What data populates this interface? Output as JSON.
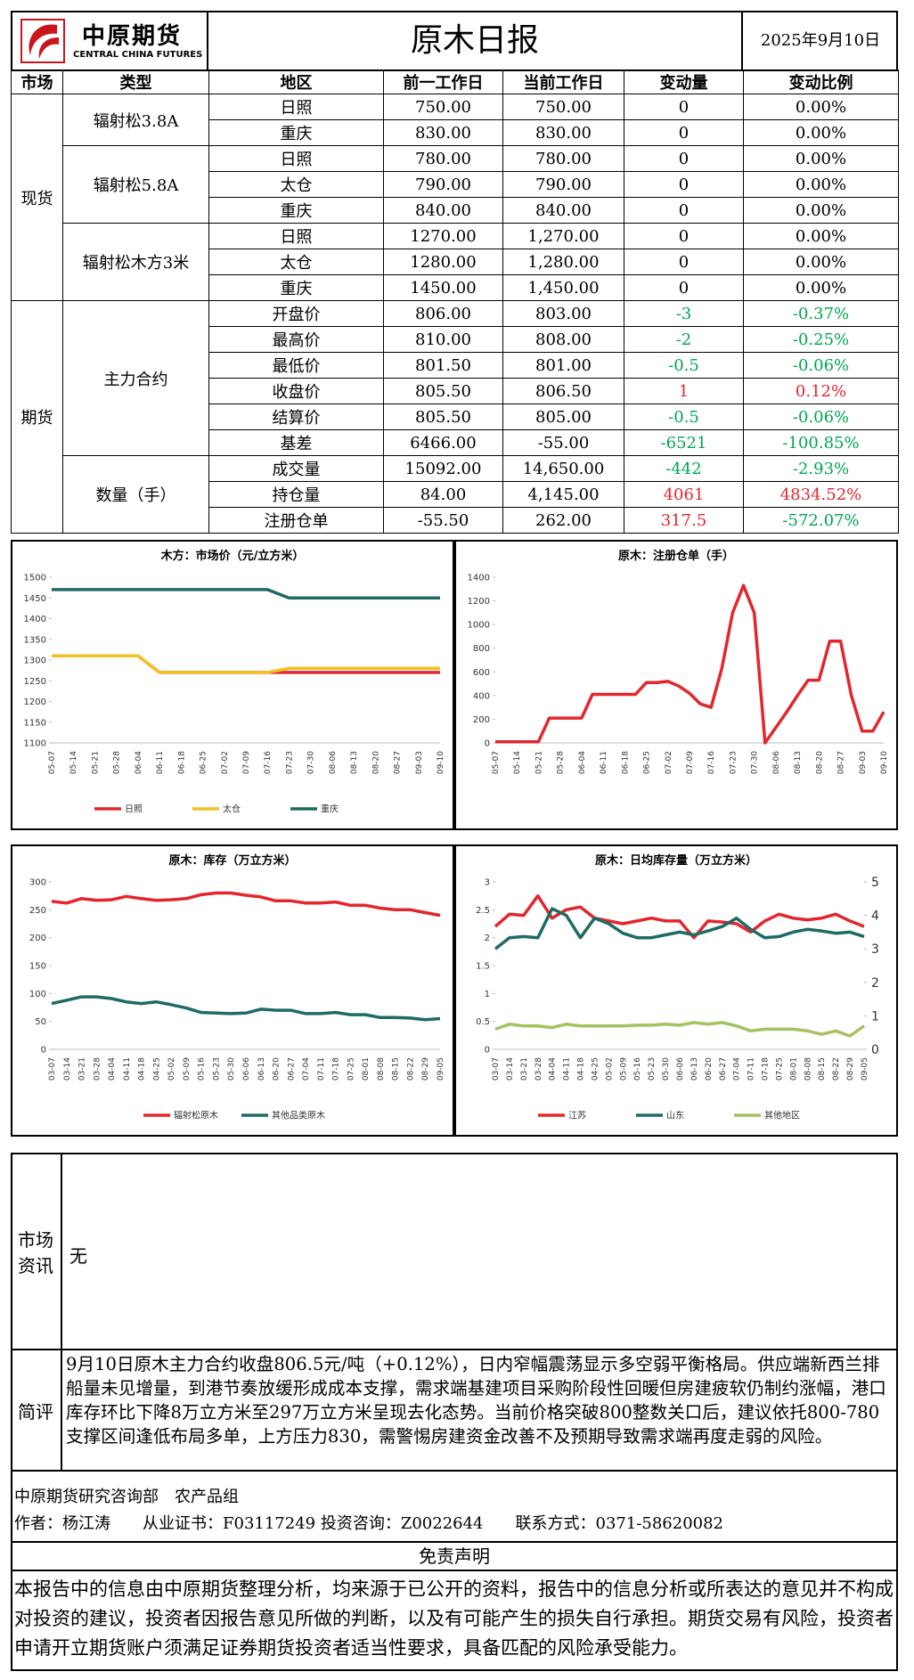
{
  "header": {
    "logo_cn": "中原期货",
    "logo_en": "CENTRAL CHINA FUTURES",
    "title": "原木日报",
    "date": "2025年9月10日"
  },
  "table": {
    "columns": [
      "市场",
      "类型",
      "地区",
      "前一工作日",
      "当前工作日",
      "变动量",
      "变动比例"
    ],
    "markets": [
      {
        "name": "现货",
        "groups": [
          {
            "name": "辐射松3.8A",
            "rows": [
              {
                "cells": [
                  "日照",
                  "750.00",
                  "750.00",
                  "0",
                  "0.00%"
                ]
              },
              {
                "cells": [
                  "重庆",
                  "830.00",
                  "830.00",
                  "0",
                  "0.00%"
                ]
              }
            ]
          },
          {
            "name": "辐射松5.8A",
            "rows": [
              {
                "cells": [
                  "日照",
                  "780.00",
                  "780.00",
                  "0",
                  "0.00%"
                ]
              },
              {
                "cells": [
                  "太仓",
                  "790.00",
                  "790.00",
                  "0",
                  "0.00%"
                ]
              },
              {
                "cells": [
                  "重庆",
                  "840.00",
                  "840.00",
                  "0",
                  "0.00%"
                ]
              }
            ]
          },
          {
            "name": "辐射松木方3米",
            "rows": [
              {
                "cells": [
                  "日照",
                  "1270.00",
                  "1,270.00",
                  "0",
                  "0.00%"
                ]
              },
              {
                "cells": [
                  "太仓",
                  "1280.00",
                  "1,280.00",
                  "0",
                  "0.00%"
                ]
              },
              {
                "cells": [
                  "重庆",
                  "1450.00",
                  "1,450.00",
                  "0",
                  "0.00%"
                ]
              }
            ]
          }
        ]
      },
      {
        "name": "期货",
        "groups": [
          {
            "name": "主力合约",
            "rows": [
              {
                "cells": [
                  "开盘价",
                  "806.00",
                  "803.00",
                  "-3",
                  "-0.37%"
                ],
                "colors": [
                  "#00a651",
                  "#00a651"
                ]
              },
              {
                "cells": [
                  "最高价",
                  "810.00",
                  "808.00",
                  "-2",
                  "-0.25%"
                ],
                "colors": [
                  "#00a651",
                  "#00a651"
                ]
              },
              {
                "cells": [
                  "最低价",
                  "801.50",
                  "801.00",
                  "-0.5",
                  "-0.06%"
                ],
                "colors": [
                  "#00a651",
                  "#00a651"
                ]
              },
              {
                "cells": [
                  "收盘价",
                  "805.50",
                  "806.50",
                  "1",
                  "0.12%"
                ],
                "colors": [
                  "#e3262d",
                  "#e3262d"
                ]
              },
              {
                "cells": [
                  "结算价",
                  "805.50",
                  "805.00",
                  "-0.5",
                  "-0.06%"
                ],
                "colors": [
                  "#00a651",
                  "#00a651"
                ]
              },
              {
                "cells": [
                  "基差",
                  "6466.00",
                  "-55.00",
                  "-6521",
                  "-100.85%"
                ],
                "colors": [
                  "#00a651",
                  "#00a651"
                ]
              }
            ]
          },
          {
            "name": "数量（手）",
            "rows": [
              {
                "cells": [
                  "成交量",
                  "15092.00",
                  "14,650.00",
                  "-442",
                  "-2.93%"
                ],
                "colors": [
                  "#00a651",
                  "#00a651"
                ]
              },
              {
                "cells": [
                  "持仓量",
                  "84.00",
                  "4,145.00",
                  "4061",
                  "4834.52%"
                ],
                "colors": [
                  "#e3262d",
                  "#e3262d"
                ]
              },
              {
                "cells": [
                  "注册仓单",
                  "-55.50",
                  "262.00",
                  "317.5",
                  "-572.07%"
                ],
                "colors": [
                  "#e3262d",
                  "#00a651"
                ]
              }
            ]
          }
        ]
      }
    ]
  },
  "chart_data": [
    {
      "type": "line",
      "title": "木方：市场价（元/立方米）",
      "categories": [
        "05-07",
        "05-14",
        "05-21",
        "05-28",
        "06-04",
        "06-11",
        "06-18",
        "06-25",
        "07-02",
        "07-09",
        "07-16",
        "07-23",
        "07-30",
        "08-06",
        "08-13",
        "08-20",
        "08-27",
        "09-03",
        "09-10"
      ],
      "series": [
        {
          "name": "日照",
          "color": "#e3262d",
          "values": [
            1310,
            1310,
            1310,
            1310,
            1310,
            1270,
            1270,
            1270,
            1270,
            1270,
            1270,
            1270,
            1270,
            1270,
            1270,
            1270,
            1270,
            1270,
            1270
          ]
        },
        {
          "name": "太仓",
          "color": "#f5c022",
          "values": [
            1310,
            1310,
            1310,
            1310,
            1310,
            1270,
            1270,
            1270,
            1270,
            1270,
            1270,
            1280,
            1280,
            1280,
            1280,
            1280,
            1280,
            1280,
            1280
          ]
        },
        {
          "name": "重庆",
          "color": "#1e6b63",
          "values": [
            1470,
            1470,
            1470,
            1470,
            1470,
            1470,
            1470,
            1470,
            1470,
            1470,
            1470,
            1450,
            1450,
            1450,
            1450,
            1450,
            1450,
            1450,
            1450
          ]
        }
      ],
      "ylim": [
        1100,
        1500
      ],
      "yticks": [
        1100,
        1150,
        1200,
        1250,
        1300,
        1350,
        1400,
        1450,
        1500
      ]
    },
    {
      "type": "line",
      "title": "原木：注册仓单（手）",
      "categories": [
        "05-07",
        null,
        "05-14",
        null,
        "05-21",
        null,
        "05-28",
        null,
        "06-04",
        null,
        "06-11",
        null,
        "06-18",
        null,
        "06-25",
        null,
        "07-02",
        null,
        "07-09",
        null,
        "07-16",
        null,
        "07-23",
        null,
        "07-30",
        null,
        "08-06",
        null,
        "08-13",
        null,
        "08-20",
        null,
        "08-27",
        null,
        "09-03",
        null,
        "09-10"
      ],
      "color": "#e3262d",
      "values": [
        10,
        10,
        10,
        10,
        10,
        210,
        210,
        210,
        210,
        410,
        410,
        410,
        410,
        410,
        510,
        510,
        520,
        480,
        420,
        330,
        300,
        630,
        1100,
        1330,
        1100,
        0,
        130,
        260,
        400,
        530,
        530,
        860,
        860,
        400,
        100,
        100,
        262
      ],
      "ylim": [
        0,
        1400
      ],
      "yticks": [
        0,
        200,
        400,
        600,
        800,
        1000,
        1200,
        1400
      ]
    },
    {
      "type": "line",
      "title": "原木：库存（万立方米）",
      "categories": [
        "03-07",
        "03-14",
        "03-21",
        "03-28",
        "04-04",
        "04-11",
        "04-18",
        "04-25",
        "05-02",
        "05-09",
        "05-16",
        "05-23",
        "05-30",
        "06-06",
        "06-13",
        "06-20",
        "06-27",
        "07-04",
        "07-11",
        "07-18",
        "07-25",
        "08-01",
        "08-08",
        "08-15",
        "08-22",
        "08-29",
        "09-05"
      ],
      "series": [
        {
          "name": "辐射松原木",
          "color": "#e3262d",
          "values": [
            265,
            262,
            270,
            267,
            268,
            274,
            270,
            267,
            268,
            270,
            277,
            280,
            280,
            276,
            273,
            266,
            266,
            262,
            262,
            264,
            258,
            258,
            253,
            250,
            250,
            245,
            240
          ]
        },
        {
          "name": "其他品类原木",
          "color": "#1e6b63",
          "values": [
            82,
            88,
            94,
            94,
            91,
            85,
            82,
            85,
            80,
            74,
            66,
            65,
            64,
            65,
            72,
            70,
            70,
            64,
            64,
            66,
            62,
            62,
            57,
            57,
            56,
            53,
            55
          ]
        }
      ],
      "ylim": [
        0,
        300
      ],
      "yticks": [
        0,
        50,
        100,
        150,
        200,
        250,
        300
      ]
    },
    {
      "type": "line",
      "title": "原木：日均库存量（万立方米）",
      "categories": [
        "03-07",
        "03-14",
        "03-21",
        "03-28",
        "04-04",
        "04-11",
        "04-18",
        "04-25",
        "05-02",
        "05-09",
        "05-16",
        "05-23",
        "05-30",
        "06-06",
        "06-13",
        "06-20",
        "06-27",
        "07-04",
        "07-11",
        "07-18",
        "07-25",
        "08-01",
        "08-08",
        "08-15",
        "08-22",
        "08-29",
        "09-05"
      ],
      "series": [
        {
          "name": "江苏",
          "color": "#e3262d",
          "values": [
            2.2,
            2.42,
            2.4,
            2.75,
            2.35,
            2.5,
            2.55,
            2.35,
            2.3,
            2.25,
            2.3,
            2.35,
            2.3,
            2.3,
            2.0,
            2.3,
            2.28,
            2.25,
            2.1,
            2.3,
            2.42,
            2.35,
            2.32,
            2.35,
            2.42,
            2.3,
            2.2
          ]
        },
        {
          "name": "山东",
          "color": "#1e6b63",
          "values": [
            1.8,
            2.0,
            2.02,
            2.0,
            2.52,
            2.4,
            2.0,
            2.35,
            2.25,
            2.08,
            2.0,
            2.0,
            2.05,
            2.1,
            2.05,
            2.12,
            2.2,
            2.35,
            2.15,
            2.0,
            2.02,
            2.1,
            2.15,
            2.12,
            2.08,
            2.1,
            2.02
          ]
        },
        {
          "name": "其他地区",
          "color": "#a5c261",
          "axis": "y2",
          "values": [
            0.6,
            0.75,
            0.7,
            0.7,
            0.65,
            0.75,
            0.7,
            0.7,
            0.7,
            0.7,
            0.72,
            0.72,
            0.75,
            0.72,
            0.8,
            0.75,
            0.8,
            0.7,
            0.55,
            0.6,
            0.6,
            0.6,
            0.55,
            0.45,
            0.55,
            0.4,
            0.7
          ]
        }
      ],
      "ylim": [
        0,
        3
      ],
      "yticks": [
        0,
        0.5,
        1,
        1.5,
        2,
        2.5,
        3
      ],
      "y2lim": [
        0,
        5
      ],
      "y2ticks": [
        0,
        1,
        2,
        3,
        4,
        5
      ]
    }
  ],
  "news": {
    "label": "市场资讯",
    "text": "无"
  },
  "comment": {
    "label": "简评",
    "text": "9月10日原木主力合约收盘806.5元/吨（+0.12%），日内窄幅震荡显示多空弱平衡格局。供应端新西兰排船量未见增量，到港节奏放缓形成成本支撑，需求端基建项目采购阶段性回暖但房建疲软仍制约涨幅，港口库存环比下降8万立方米至297万立方米呈现去化态势。当前价格突破800整数关口后，建议依托800-780支撑区间逢低布局多单，上方压力830，需警惕房建资金改善不及预期导致需求端再度走弱的风险。"
  },
  "footer": {
    "dept": "中原期货研究咨询部　农产品组",
    "author": "作者：杨江涛　　从业证书：F03117249 投资咨询：Z0022644　　联系方式：0371-58620082"
  },
  "disclaimer": {
    "title": "免责声明",
    "text": "本报告中的信息由中原期货整理分析，均来源于已公开的资料，报告中的信息分析或所表达的意见并不构成对投资的建议，投资者因报告意见所做的判断，以及有可能产生的损失自行承担。期货交易有风险，投资者申请开立期货账户须满足证券期货投资者适当性要求，具备匹配的风险承受能力。"
  }
}
